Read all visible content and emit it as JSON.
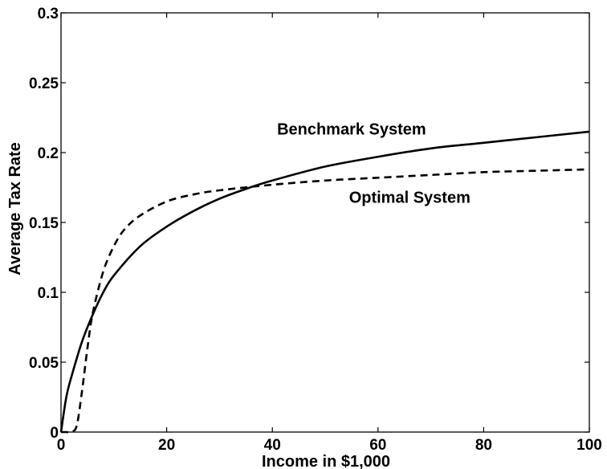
{
  "chart_data": {
    "type": "line",
    "xlabel": "Income in $1,000",
    "ylabel": "Average Tax Rate",
    "xlim": [
      0,
      100
    ],
    "ylim": [
      0,
      0.3
    ],
    "xticks": [
      0,
      20,
      40,
      60,
      80,
      100
    ],
    "xtick_labels": [
      "0",
      "20",
      "40",
      "60",
      "80",
      "100"
    ],
    "yticks": [
      0,
      0.05,
      0.1,
      0.15,
      0.2,
      0.25,
      0.3
    ],
    "ytick_labels": [
      "0",
      "0.05",
      "0.1",
      "0.15",
      "0.2",
      "0.25",
      "0.3"
    ],
    "grid": false,
    "series": [
      {
        "name": "Benchmark System",
        "line_style": "solid",
        "color": "#000000",
        "x": [
          0,
          1,
          2,
          4,
          6,
          8,
          10,
          15,
          20,
          25,
          30,
          35,
          40,
          50,
          60,
          70,
          80,
          90,
          100
        ],
        "y": [
          0,
          0.025,
          0.04,
          0.065,
          0.084,
          0.1,
          0.112,
          0.133,
          0.147,
          0.158,
          0.167,
          0.174,
          0.18,
          0.19,
          0.197,
          0.203,
          0.207,
          0.211,
          0.215
        ]
      },
      {
        "name": "Optimal System",
        "line_style": "dashed",
        "color": "#000000",
        "x": [
          0,
          1,
          2,
          3,
          4,
          5,
          6,
          8,
          10,
          12,
          15,
          20,
          25,
          30,
          40,
          50,
          60,
          70,
          80,
          90,
          100
        ],
        "y": [
          0,
          0,
          0,
          0.005,
          0.03,
          0.06,
          0.085,
          0.115,
          0.133,
          0.145,
          0.155,
          0.165,
          0.17,
          0.173,
          0.177,
          0.18,
          0.182,
          0.184,
          0.186,
          0.187,
          0.188
        ]
      }
    ],
    "annotations": [
      {
        "text": "Benchmark System",
        "x": 55,
        "y": 0.213
      },
      {
        "text": "Optimal System",
        "x": 66,
        "y": 0.164
      }
    ]
  }
}
